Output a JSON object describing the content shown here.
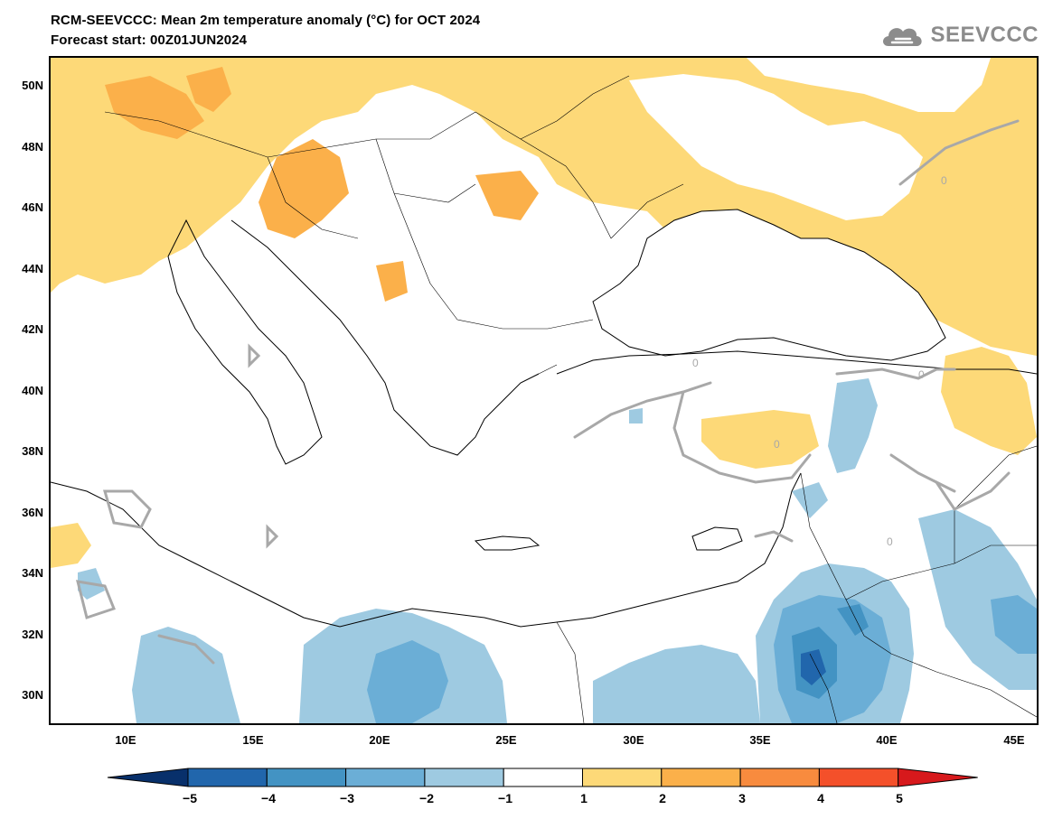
{
  "header": {
    "title_line1": "RCM-SEEVCCC: Mean 2m temperature anomaly (°C) for OCT 2024",
    "title_line2": "Forecast start: 00Z01JUN2024"
  },
  "logo": {
    "icon": "cloud-logo-icon",
    "text": "SEEVCCC"
  },
  "map": {
    "extent": {
      "lon_min": 7,
      "lon_max": 46,
      "lat_min": 29,
      "lat_max": 51
    },
    "lat_labels": [
      "30N",
      "32N",
      "34N",
      "36N",
      "38N",
      "40N",
      "42N",
      "44N",
      "46N",
      "48N",
      "50N"
    ],
    "lon_labels": [
      "10E",
      "15E",
      "20E",
      "25E",
      "30E",
      "35E",
      "40E",
      "45E"
    ]
  },
  "colorbar": {
    "labels": [
      "−5",
      "−4",
      "−3",
      "−2",
      "−1",
      "1",
      "2",
      "3",
      "4",
      "5"
    ],
    "colors": [
      "#08306b",
      "#2166ac",
      "#4393c3",
      "#6baed6",
      "#9ecae1",
      "#ffffff",
      "#fdd978",
      "#fbb04a",
      "#f88b3e",
      "#f4502a",
      "#d7191c"
    ]
  }
}
